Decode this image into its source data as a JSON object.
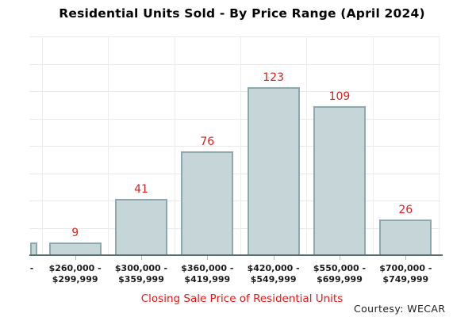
{
  "title": "Residential Units Sold - By Price Range (April 2024)",
  "x_axis_title": "Closing Sale Price of Residential Units",
  "credit": "Courtesy: WECAR",
  "colors": {
    "bar_fill": "#c6d6d8",
    "bar_border": "#8ea8ad",
    "value_label_red": "#dd2121",
    "x_axis_title_red": "#ef1313",
    "axis_line": "#596e6c",
    "gridline": "#e9e9e9",
    "label_text": "#1c1c1c"
  },
  "chart_data": {
    "type": "bar",
    "title": "Residential Units Sold - By Price Range (April 2024)",
    "xlabel": "Closing Sale Price of Residential Units",
    "categories": [
      "$260,000 - $299,999",
      "$300,000 - $359,999",
      "$360,000 - $419,999",
      "$420,000 - $549,999",
      "$550,000 - $699,999",
      "$700,000 - $749,999"
    ],
    "values": [
      9,
      41,
      76,
      123,
      109,
      26
    ],
    "ylim": [
      0,
      160
    ],
    "grid_step": 20,
    "grid": true,
    "legend": false,
    "y_axis_labels_visible": false,
    "clipped_left_bar": {
      "visible_label_fragment": "-",
      "estimated_value": 9.5
    }
  }
}
